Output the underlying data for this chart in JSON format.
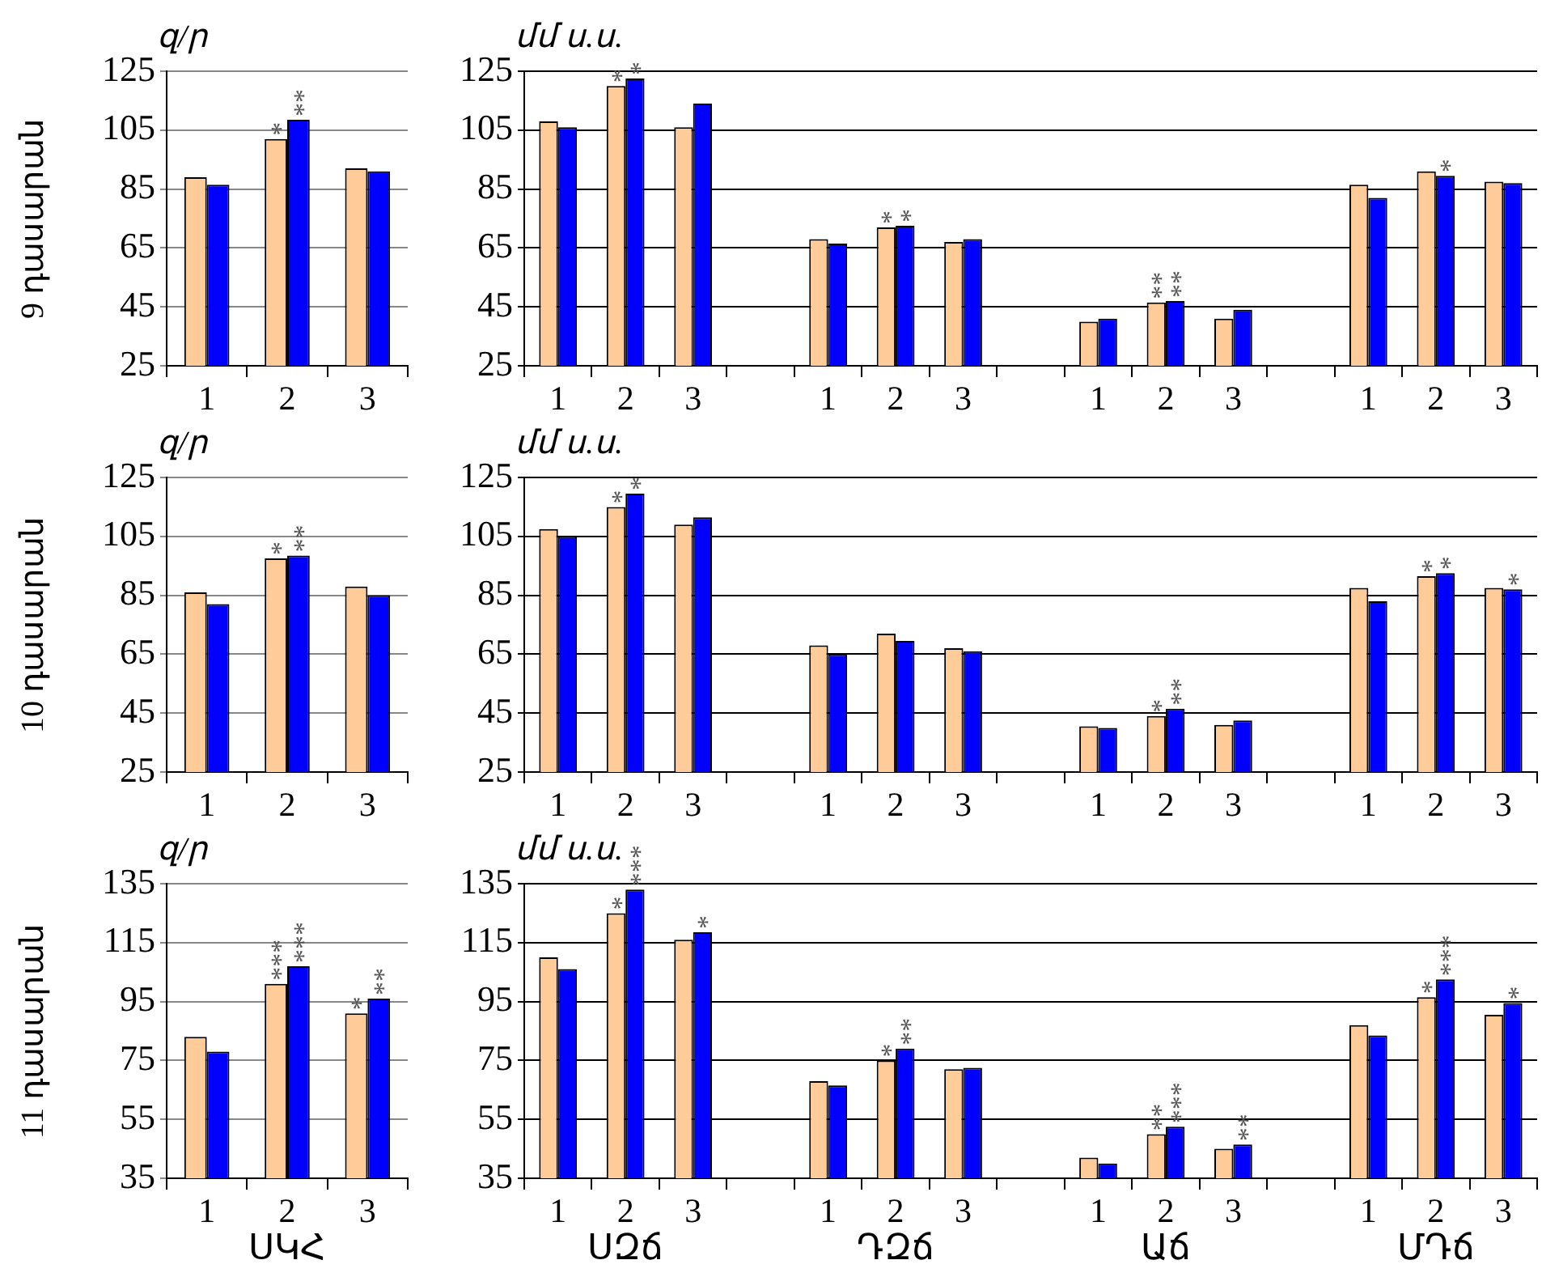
{
  "chart_data": [
    {
      "type": "bar",
      "title": "9 դասարան",
      "ylabel": "զ/ր",
      "categories": [
        "1",
        "2",
        "3"
      ],
      "ylim": [
        25,
        125
      ],
      "yticks": [
        25,
        45,
        65,
        85,
        105,
        125
      ],
      "grid": "y",
      "series": [
        {
          "color": "#ffcc99",
          "values": [
            89,
            102,
            92
          ],
          "value_labels": [
            null,
            "*",
            null
          ]
        },
        {
          "color": "#0000ff",
          "values": [
            86.5,
            108.5,
            91
          ],
          "value_labels": [
            null,
            "**",
            null
          ]
        }
      ]
    },
    {
      "type": "bar",
      "ylabel": "մմ ս.ս.",
      "categories": [
        "1",
        "2",
        "3",
        null,
        "1",
        "2",
        "3",
        null,
        "1",
        "2",
        "3",
        null,
        "1",
        "2",
        "3"
      ],
      "ylim": [
        25,
        125
      ],
      "yticks": [
        25,
        45,
        65,
        85,
        105,
        125
      ],
      "grid": "y",
      "series": [
        {
          "color": "#ffcc99",
          "values": [
            108,
            120,
            106,
            null,
            68,
            72,
            67,
            null,
            40,
            46.5,
            41,
            null,
            86.5,
            91,
            87.5
          ],
          "value_labels": [
            null,
            "*",
            null,
            null,
            null,
            "*",
            null,
            null,
            null,
            "**",
            null,
            null,
            null,
            null,
            null
          ]
        },
        {
          "color": "#0000ff",
          "values": [
            106,
            122.5,
            114,
            null,
            66.5,
            72.5,
            68,
            null,
            41,
            47,
            44,
            null,
            82,
            89.5,
            87
          ],
          "value_labels": [
            null,
            "*",
            null,
            null,
            null,
            "*",
            null,
            null,
            null,
            "**",
            null,
            null,
            null,
            "*",
            null
          ]
        }
      ]
    },
    {
      "type": "bar",
      "title": "10 դասարան",
      "ylabel": "զ/ր",
      "categories": [
        "1",
        "2",
        "3"
      ],
      "ylim": [
        25,
        125
      ],
      "yticks": [
        25,
        45,
        65,
        85,
        105,
        125
      ],
      "grid": "y",
      "series": [
        {
          "color": "#ffcc99",
          "values": [
            86,
            97.5,
            88
          ],
          "value_labels": [
            null,
            "*",
            null
          ]
        },
        {
          "color": "#0000ff",
          "values": [
            82,
            98.5,
            85
          ],
          "value_labels": [
            null,
            "**",
            null
          ]
        }
      ]
    },
    {
      "type": "bar",
      "ylabel": "մմ ս.ս.",
      "categories": [
        "1",
        "2",
        "3",
        null,
        "1",
        "2",
        "3",
        null,
        "1",
        "2",
        "3",
        null,
        "1",
        "2",
        "3"
      ],
      "ylim": [
        25,
        125
      ],
      "yticks": [
        25,
        45,
        65,
        85,
        105,
        125
      ],
      "grid": "y",
      "series": [
        {
          "color": "#ffcc99",
          "values": [
            107.5,
            115,
            109,
            null,
            68,
            72,
            67,
            null,
            40.5,
            44,
            41,
            null,
            87.5,
            91.5,
            87.5
          ],
          "value_labels": [
            null,
            "*",
            null,
            null,
            null,
            null,
            null,
            null,
            null,
            "*",
            null,
            null,
            null,
            "*",
            null
          ]
        },
        {
          "color": "#0000ff",
          "values": [
            105,
            119.5,
            111.5,
            null,
            65,
            69.5,
            66,
            null,
            40,
            46.5,
            42.5,
            null,
            83,
            92.5,
            87
          ],
          "value_labels": [
            null,
            "*",
            null,
            null,
            null,
            null,
            null,
            null,
            null,
            "**",
            null,
            null,
            null,
            "*",
            "*"
          ]
        }
      ]
    },
    {
      "type": "bar",
      "title": "11 դասարան",
      "ylabel": "զ/ր",
      "xlabel": "ՍԿՀ",
      "categories": [
        "1",
        "2",
        "3"
      ],
      "ylim": [
        35,
        135
      ],
      "yticks": [
        35,
        55,
        75,
        95,
        115,
        135
      ],
      "grid": "y",
      "series": [
        {
          "color": "#ffcc99",
          "values": [
            83,
            101,
            91
          ],
          "value_labels": [
            null,
            "***",
            "*"
          ]
        },
        {
          "color": "#0000ff",
          "values": [
            78,
            107,
            96
          ],
          "value_labels": [
            null,
            "***",
            "**"
          ]
        }
      ]
    },
    {
      "type": "bar",
      "ylabel": "մմ ս.ս.",
      "annotations": [
        "ՍԶճ",
        "ԴԶճ",
        "Աճ",
        "ՄԴճ"
      ],
      "categories": [
        "1",
        "2",
        "3",
        null,
        "1",
        "2",
        "3",
        null,
        "1",
        "2",
        "3",
        null,
        "1",
        "2",
        "3"
      ],
      "ylim": [
        35,
        135
      ],
      "yticks": [
        35,
        55,
        75,
        95,
        115,
        135
      ],
      "grid": "y",
      "series": [
        {
          "color": "#ffcc99",
          "values": [
            110,
            125,
            116,
            null,
            68,
            75,
            72,
            null,
            42,
            50,
            45,
            null,
            87,
            96.5,
            90.5
          ],
          "value_labels": [
            null,
            "*",
            null,
            null,
            null,
            "*",
            null,
            null,
            null,
            "**",
            null,
            null,
            null,
            "*",
            null
          ]
        },
        {
          "color": "#0000ff",
          "values": [
            106,
            133,
            118.5,
            null,
            66.5,
            79,
            72.5,
            null,
            40,
            52.5,
            46.5,
            null,
            83.5,
            102.5,
            94.5
          ],
          "value_labels": [
            null,
            "***",
            "*",
            null,
            null,
            "**",
            null,
            null,
            null,
            "***",
            "**",
            null,
            null,
            "***",
            "*"
          ]
        }
      ]
    }
  ]
}
